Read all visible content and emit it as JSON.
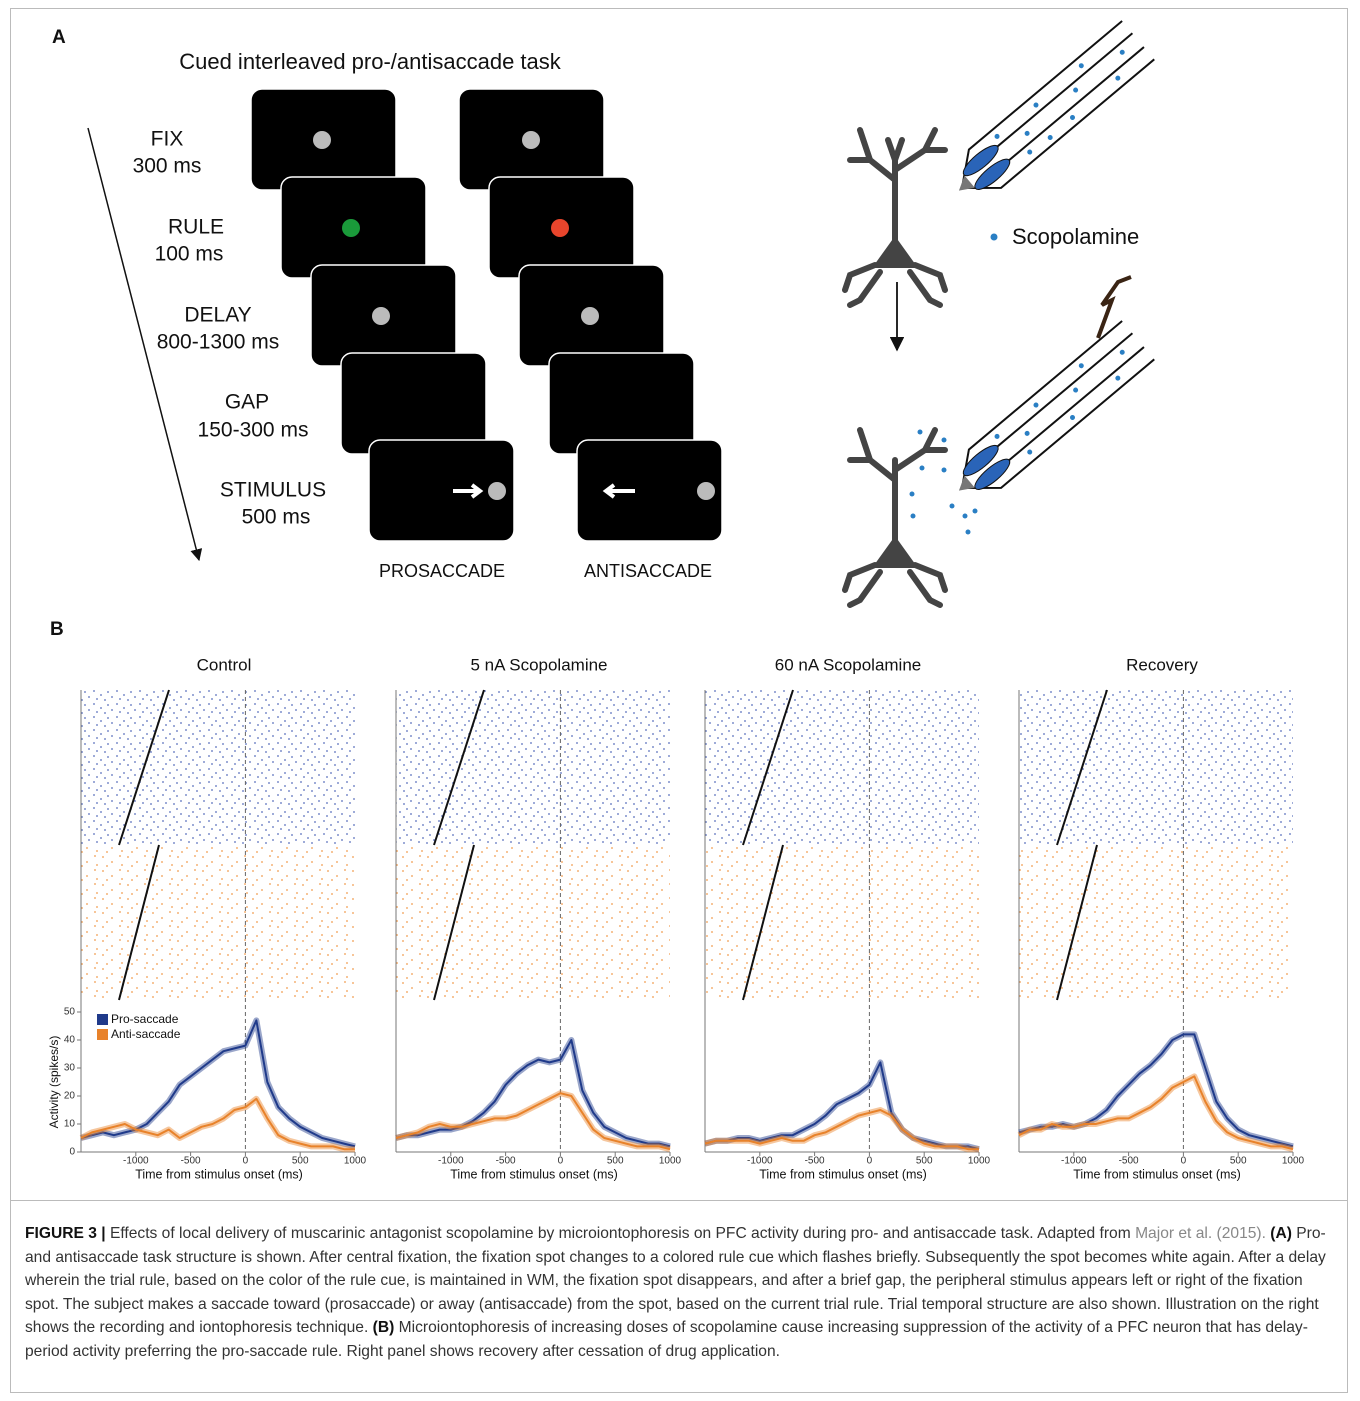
{
  "panel_a": {
    "label": "A",
    "title": "Cued interleaved pro-/antisaccade task",
    "epochs": [
      {
        "name": "FIX",
        "duration": "300 ms"
      },
      {
        "name": "RULE",
        "duration": "100 ms"
      },
      {
        "name": "DELAY",
        "duration": "800-1300 ms"
      },
      {
        "name": "GAP",
        "duration": "150-300 ms"
      },
      {
        "name": "STIMULUS",
        "duration": "500 ms"
      }
    ],
    "conditions": [
      "PROSACCADE",
      "ANTISACCADE"
    ],
    "drug_label": "Scopolamine"
  },
  "panel_b": {
    "label": "B"
  },
  "chart_data": [
    {
      "type": "line",
      "title": "Control",
      "xlabel": "Time from stimulus onset (ms)",
      "ylabel": "Activity (spikes/s)",
      "x": [
        -1500,
        -1400,
        -1300,
        -1200,
        -1100,
        -1000,
        -900,
        -800,
        -700,
        -600,
        -500,
        -400,
        -300,
        -200,
        -100,
        0,
        100,
        200,
        300,
        400,
        500,
        600,
        700,
        800,
        900,
        1000
      ],
      "xlim": [
        -1500,
        1000
      ],
      "xticks": [
        -1000,
        -500,
        0,
        500,
        1000
      ],
      "ylim": [
        0,
        50
      ],
      "yticks": [
        0,
        10,
        20,
        30,
        40,
        50
      ],
      "legend": "upper left",
      "series": [
        {
          "name": "Pro-saccade",
          "color": "#1f3a8a",
          "values": [
            5,
            6,
            7,
            6,
            7,
            8,
            10,
            14,
            18,
            24,
            27,
            30,
            33,
            36,
            37,
            38,
            47,
            25,
            16,
            12,
            9,
            7,
            5,
            4,
            3,
            2
          ]
        },
        {
          "name": "Anti-saccade",
          "color": "#e8822a",
          "values": [
            5,
            7,
            8,
            9,
            10,
            8,
            7,
            6,
            8,
            5,
            7,
            9,
            10,
            12,
            15,
            16,
            19,
            12,
            6,
            4,
            3,
            2,
            2,
            2,
            1,
            1
          ]
        }
      ]
    },
    {
      "type": "line",
      "title": "5 nA Scopolamine",
      "xlabel": "Time from stimulus onset (ms)",
      "x": [
        -1500,
        -1400,
        -1300,
        -1200,
        -1100,
        -1000,
        -900,
        -800,
        -700,
        -600,
        -500,
        -400,
        -300,
        -200,
        -100,
        0,
        100,
        200,
        300,
        400,
        500,
        600,
        700,
        800,
        900,
        1000
      ],
      "xlim": [
        -1500,
        1000
      ],
      "xticks": [
        -1000,
        -500,
        0,
        500,
        1000
      ],
      "ylim": [
        0,
        50
      ],
      "series": [
        {
          "color": "#1f3a8a",
          "values": [
            5,
            6,
            6,
            7,
            8,
            8,
            9,
            11,
            14,
            18,
            24,
            28,
            31,
            33,
            32,
            33,
            40,
            22,
            14,
            9,
            7,
            5,
            4,
            3,
            3,
            2
          ]
        },
        {
          "color": "#e8822a",
          "values": [
            5,
            6,
            7,
            9,
            10,
            9,
            9,
            10,
            11,
            12,
            12,
            13,
            15,
            17,
            19,
            21,
            20,
            14,
            8,
            5,
            4,
            3,
            2,
            2,
            2,
            1
          ]
        }
      ]
    },
    {
      "type": "line",
      "title": "60 nA Scopolamine",
      "xlabel": "Time from stimulus onset (ms)",
      "x": [
        -1500,
        -1400,
        -1300,
        -1200,
        -1100,
        -1000,
        -900,
        -800,
        -700,
        -600,
        -500,
        -400,
        -300,
        -200,
        -100,
        0,
        100,
        200,
        300,
        400,
        500,
        600,
        700,
        800,
        900,
        1000
      ],
      "xlim": [
        -1500,
        1000
      ],
      "xticks": [
        -1000,
        -500,
        0,
        500,
        1000
      ],
      "ylim": [
        0,
        50
      ],
      "series": [
        {
          "color": "#1f3a8a",
          "values": [
            3,
            4,
            4,
            5,
            5,
            4,
            5,
            6,
            6,
            8,
            10,
            13,
            17,
            19,
            21,
            24,
            32,
            14,
            8,
            5,
            4,
            3,
            2,
            2,
            2,
            1
          ]
        },
        {
          "color": "#e8822a",
          "values": [
            3,
            4,
            4,
            4,
            4,
            3,
            4,
            5,
            4,
            4,
            6,
            7,
            9,
            11,
            13,
            14,
            15,
            13,
            8,
            5,
            3,
            2,
            2,
            2,
            1,
            1
          ]
        }
      ]
    },
    {
      "type": "line",
      "title": "Recovery",
      "xlabel": "Time from stimulus onset (ms)",
      "x": [
        -1500,
        -1400,
        -1300,
        -1200,
        -1100,
        -1000,
        -900,
        -800,
        -700,
        -600,
        -500,
        -400,
        -300,
        -200,
        -100,
        0,
        100,
        200,
        300,
        400,
        500,
        600,
        700,
        800,
        900,
        1000
      ],
      "xlim": [
        -1500,
        1000
      ],
      "xticks": [
        -1000,
        -500,
        0,
        500,
        1000
      ],
      "ylim": [
        0,
        50
      ],
      "series": [
        {
          "color": "#1f3a8a",
          "values": [
            7,
            8,
            9,
            9,
            10,
            9,
            10,
            12,
            15,
            20,
            24,
            28,
            31,
            35,
            40,
            42,
            42,
            30,
            18,
            12,
            8,
            6,
            5,
            4,
            3,
            2
          ]
        },
        {
          "color": "#e8822a",
          "values": [
            6,
            8,
            8,
            10,
            9,
            9,
            10,
            10,
            11,
            12,
            12,
            14,
            16,
            19,
            23,
            25,
            27,
            18,
            11,
            7,
            5,
            4,
            3,
            2,
            2,
            1
          ]
        }
      ]
    }
  ],
  "caption": {
    "figure_label": "FIGURE 3 |",
    "text_1": "Effects of local delivery of muscarinic antagonist scopolamine by microiontophoresis on PFC activity during pro- and antisaccade task. Adapted from",
    "reference": "Major et al. (2015).",
    "label_a": "(A)",
    "text_a": "Pro- and antisaccade task structure is shown. After central fixation, the fixation spot changes to a colored rule cue which flashes briefly. Subsequently the spot becomes white again. After a delay wherein the trial rule, based on the color of the rule cue, is maintained in WM, the fixation spot disappears, and after a brief gap, the peripheral stimulus appears left or right of the fixation spot. The subject makes a saccade toward (prosaccade) or away (antisaccade) from the spot, based on the current trial rule. Trial temporal structure are also shown. Illustration on the right shows the recording and iontophoresis technique.",
    "label_b": "(B)",
    "text_b": "Microiontophoresis of increasing doses of scopolamine cause increasing suppression of the activity of a PFC neuron that has delay-period activity preferring the pro-saccade rule. Right panel shows recovery after cessation of drug application."
  }
}
